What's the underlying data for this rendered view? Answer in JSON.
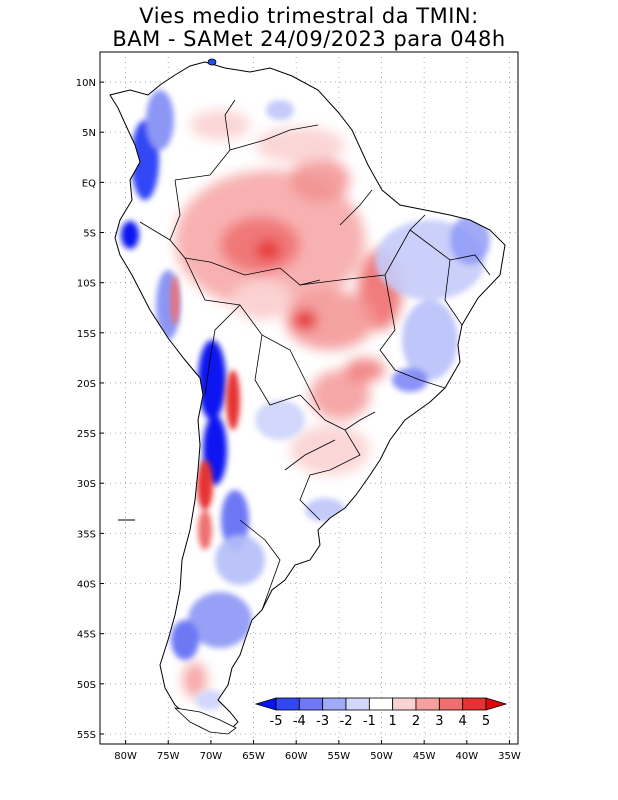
{
  "title": {
    "line1": "Vies medio trimestral da TMIN:",
    "line2": "BAM - SAMet 24/09/2023  para 048h"
  },
  "axes": {
    "lat_labels": [
      "10N",
      "5N",
      "EQ",
      "5S",
      "10S",
      "15S",
      "20S",
      "25S",
      "30S",
      "35S",
      "40S",
      "45S",
      "50S",
      "55S"
    ],
    "lon_labels": [
      "80W",
      "75W",
      "70W",
      "65W",
      "60W",
      "55W",
      "50W",
      "45W",
      "40W",
      "35W"
    ],
    "lat_range": [
      13,
      -56
    ],
    "lon_range": [
      -83,
      -34
    ],
    "gridlines": "dotted"
  },
  "colorbar": {
    "labels": [
      "-5",
      "-4",
      "-3",
      "-2",
      "-1",
      "1",
      "2",
      "3",
      "4",
      "5"
    ],
    "colors": [
      "#0a14f0",
      "#3246f5",
      "#6e78f5",
      "#a0aaf8",
      "#d2d7fb",
      "#ffffff",
      "#fbd2d2",
      "#f7a0a0",
      "#f06e6e",
      "#e63232",
      "#dc0a0a"
    ]
  },
  "colors": {
    "land": "#ffffff",
    "border": "#000000"
  }
}
